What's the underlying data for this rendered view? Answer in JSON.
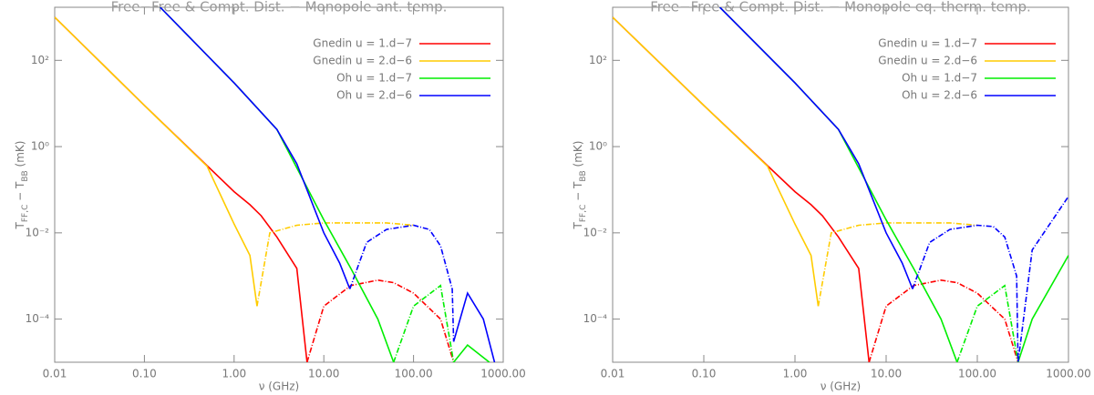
{
  "chart_data": [
    {
      "type": "line",
      "title": "Free−Free & Compt. Dist. − Monopole ant. temp.",
      "x_label": "ν (GHz)",
      "y_label": [
        {
          "text": "T"
        },
        {
          "text": "FF,C",
          "sub": true
        },
        {
          "text": " − T"
        },
        {
          "text": "BB",
          "sub": true
        },
        {
          "text": " (mK)"
        }
      ],
      "log_x": true,
      "log_y": true,
      "xlim": [
        0.01,
        1000
      ],
      "ylim": [
        1e-05,
        1700
      ],
      "xticks": [
        {
          "value": 0.01,
          "label": "0.01"
        },
        {
          "value": 0.1,
          "label": "0.10"
        },
        {
          "value": 1,
          "label": "1.00"
        },
        {
          "value": 10,
          "label": "10.00"
        },
        {
          "value": 100,
          "label": "100.00"
        },
        {
          "value": 1000,
          "label": "1000.00"
        }
      ],
      "yticks": [
        {
          "value": 0.0001,
          "label": "10⁻⁴"
        },
        {
          "value": 0.01,
          "label": "10⁻²"
        },
        {
          "value": 1,
          "label": "10⁰"
        },
        {
          "value": 100,
          "label": "10²"
        }
      ],
      "legend": "upper right",
      "series": [
        {
          "name": "Gnedin u = 1.d−7",
          "color": "#ff0000",
          "x": [
            0.01,
            0.1,
            1,
            1.5,
            2,
            3,
            5,
            6.5,
            10,
            20,
            40,
            60,
            100,
            200,
            280
          ],
          "values": [
            1000,
            9,
            0.09,
            0.045,
            0.025,
            0.008,
            0.0015,
            1e-05,
            null,
            null,
            null,
            null,
            null,
            null,
            null
          ],
          "dashed_values": [
            null,
            null,
            null,
            null,
            null,
            null,
            null,
            1e-05,
            0.0002,
            0.0006,
            0.0008,
            0.0007,
            0.0004,
            0.0001,
            1e-05
          ]
        },
        {
          "name": "Gnedin u = 2.d−6",
          "color": "#ffcc00",
          "x": [
            0.01,
            0.1,
            0.5,
            1,
            1.5,
            1.8,
            2.5,
            5,
            10,
            50,
            100
          ],
          "values": [
            1000,
            9,
            0.35,
            0.016,
            0.003,
            0.0002,
            null,
            null,
            null,
            null,
            null
          ],
          "dashed_values": [
            null,
            null,
            null,
            null,
            null,
            0.0002,
            0.01,
            0.015,
            0.017,
            0.017,
            0.015
          ]
        },
        {
          "name": "Oh u = 1.d−7",
          "color": "#00ee00",
          "x": [
            0.15,
            1,
            3,
            10,
            20,
            40,
            60,
            100,
            200,
            280,
            400,
            700
          ],
          "values": [
            1700,
            30,
            2.5,
            0.02,
            0.0015,
            0.0001,
            1e-05,
            null,
            null,
            1e-05,
            2.5e-05,
            1e-05
          ],
          "dashed_values": [
            null,
            null,
            null,
            null,
            null,
            null,
            1e-05,
            0.0002,
            0.0006,
            1e-05,
            null,
            null
          ]
        },
        {
          "name": "Oh u = 2.d−6",
          "color": "#0000ff",
          "x": [
            0.15,
            1,
            3,
            5,
            10,
            15,
            19.5,
            30,
            50,
            100,
            150,
            200,
            270,
            280,
            400,
            600,
            800
          ],
          "values": [
            1700,
            30,
            2.5,
            0.4,
            0.01,
            0.002,
            0.0005,
            null,
            null,
            null,
            null,
            null,
            null,
            3e-05,
            0.0004,
            0.0001,
            1e-05
          ],
          "dashed_values": [
            null,
            null,
            null,
            null,
            null,
            null,
            0.0005,
            0.006,
            0.012,
            0.015,
            0.012,
            0.005,
            0.0005,
            3e-05,
            null,
            null,
            null
          ]
        }
      ]
    },
    {
      "type": "line",
      "title": "Free−Free & Compt. Dist. − Monopole eq. therm. temp.",
      "x_label": "ν (GHz)",
      "y_label": [
        {
          "text": "T"
        },
        {
          "text": "FF,C",
          "sub": true
        },
        {
          "text": " − T"
        },
        {
          "text": "BB",
          "sub": true
        },
        {
          "text": " (mK)"
        }
      ],
      "log_x": true,
      "log_y": true,
      "xlim": [
        0.01,
        1000
      ],
      "ylim": [
        1e-05,
        1700
      ],
      "xticks": [
        {
          "value": 0.01,
          "label": "0.01"
        },
        {
          "value": 0.1,
          "label": "0.10"
        },
        {
          "value": 1,
          "label": "1.00"
        },
        {
          "value": 10,
          "label": "10.00"
        },
        {
          "value": 100,
          "label": "100.00"
        },
        {
          "value": 1000,
          "label": "1000.00"
        }
      ],
      "yticks": [
        {
          "value": 0.0001,
          "label": "10⁻⁴"
        },
        {
          "value": 0.01,
          "label": "10⁻²"
        },
        {
          "value": 1,
          "label": "10⁰"
        },
        {
          "value": 100,
          "label": "10²"
        }
      ],
      "legend": "upper right",
      "series": [
        {
          "name": "Gnedin u = 1.d−7",
          "color": "#ff0000",
          "x": [
            0.01,
            0.1,
            1,
            1.5,
            2,
            3,
            5,
            6.5,
            10,
            20,
            40,
            60,
            100,
            200,
            280
          ],
          "values": [
            1000,
            9,
            0.09,
            0.045,
            0.025,
            0.008,
            0.0015,
            1e-05,
            null,
            null,
            null,
            null,
            null,
            null,
            null
          ],
          "dashed_values": [
            null,
            null,
            null,
            null,
            null,
            null,
            null,
            1e-05,
            0.0002,
            0.0006,
            0.0008,
            0.0007,
            0.0004,
            0.0001,
            1e-05
          ]
        },
        {
          "name": "Gnedin u = 2.d−6",
          "color": "#ffcc00",
          "x": [
            0.01,
            0.1,
            0.5,
            1,
            1.5,
            1.8,
            2.5,
            5,
            10,
            50,
            100
          ],
          "values": [
            1000,
            9,
            0.35,
            0.016,
            0.003,
            0.0002,
            null,
            null,
            null,
            null,
            null
          ],
          "dashed_values": [
            null,
            null,
            null,
            null,
            null,
            0.0002,
            0.01,
            0.015,
            0.017,
            0.017,
            0.015
          ]
        },
        {
          "name": "Oh u = 1.d−7",
          "color": "#00ee00",
          "x": [
            0.15,
            1,
            3,
            10,
            20,
            40,
            60,
            100,
            200,
            280,
            400,
            1000
          ],
          "values": [
            1700,
            30,
            2.5,
            0.02,
            0.0015,
            0.0001,
            1e-05,
            null,
            null,
            1e-05,
            0.0001,
            0.003
          ],
          "dashed_values": [
            null,
            null,
            null,
            null,
            null,
            null,
            1e-05,
            0.0002,
            0.0006,
            1e-05,
            null,
            null
          ]
        },
        {
          "name": "Oh u = 2.d−6",
          "color": "#0000ff",
          "x": [
            0.15,
            1,
            3,
            5,
            10,
            15,
            19.5,
            30,
            50,
            100,
            150,
            200,
            270,
            280,
            400,
            1000
          ],
          "values": [
            1700,
            30,
            2.5,
            0.4,
            0.01,
            0.002,
            0.0005,
            null,
            null,
            null,
            null,
            null,
            null,
            null,
            null,
            null
          ],
          "dashed_values": [
            null,
            null,
            null,
            null,
            null,
            null,
            0.0005,
            0.006,
            0.012,
            0.015,
            0.014,
            0.008,
            0.001,
            1e-05,
            0.004,
            0.07
          ]
        }
      ]
    }
  ]
}
